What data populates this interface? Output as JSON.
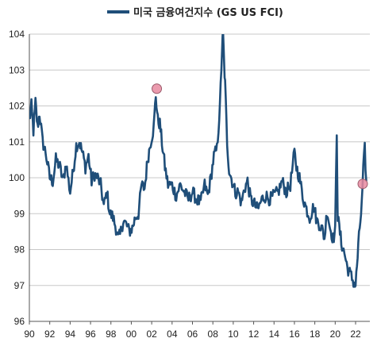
{
  "chart_data": {
    "type": "line",
    "title": "",
    "xlabel": "",
    "ylabel": "",
    "legend": {
      "placement": "top-center",
      "label": "미국 금융여건지수 (GS US FCI)"
    },
    "xlim": [
      1990,
      2023.4
    ],
    "ylim": [
      96,
      104
    ],
    "y_ticks": [
      96,
      97,
      98,
      99,
      100,
      101,
      102,
      103,
      104
    ],
    "x_ticks": [
      1990,
      1992,
      1994,
      1996,
      1998,
      2000,
      2002,
      2004,
      2006,
      2008,
      2010,
      2012,
      2014,
      2016,
      2018,
      2020,
      2022
    ],
    "x_tick_labels": [
      "90",
      "92",
      "94",
      "96",
      "98",
      "00",
      "02",
      "04",
      "06",
      "08",
      "10",
      "12",
      "14",
      "16",
      "18",
      "20",
      "22"
    ],
    "grid": {
      "horizontal": true,
      "vertical": false
    },
    "colors": {
      "line": "#1f4e79",
      "grid": "#c8c8c8",
      "highlight_fill": "#e88aa0",
      "highlight_stroke": "#9a5a6a"
    },
    "series": [
      {
        "name": "미국 금융여건지수 (GS US FCI)",
        "x": [
          1990.0,
          1990.2,
          1990.4,
          1990.6,
          1990.8,
          1991.0,
          1991.3,
          1991.6,
          1992.0,
          1992.3,
          1992.6,
          1993.0,
          1993.3,
          1993.6,
          1994.0,
          1994.3,
          1994.6,
          1994.9,
          1995.2,
          1995.5,
          1995.8,
          1996.1,
          1996.4,
          1996.7,
          1997.0,
          1997.3,
          1997.6,
          1997.9,
          1998.2,
          1998.5,
          1998.7,
          1998.9,
          1999.2,
          1999.5,
          1999.8,
          2000.1,
          2000.4,
          2000.7,
          2001.0,
          2001.3,
          2001.6,
          2001.9,
          2002.2,
          2002.4,
          2002.6,
          2002.8,
          2003.0,
          2003.3,
          2003.6,
          2004.0,
          2004.4,
          2004.8,
          2005.2,
          2005.6,
          2006.0,
          2006.4,
          2006.8,
          2007.2,
          2007.5,
          2007.8,
          2008.1,
          2008.4,
          2008.7,
          2008.9,
          2009.0,
          2009.1,
          2009.2,
          2009.4,
          2009.6,
          2009.9,
          2010.2,
          2010.5,
          2010.8,
          2011.1,
          2011.4,
          2011.7,
          2012.0,
          2012.4,
          2012.8,
          2013.2,
          2013.6,
          2014.0,
          2014.4,
          2014.8,
          2015.2,
          2015.6,
          2016.0,
          2016.2,
          2016.5,
          2016.8,
          2017.1,
          2017.5,
          2017.9,
          2018.2,
          2018.5,
          2018.8,
          2018.95,
          2019.2,
          2019.5,
          2019.8,
          2020.0,
          2020.15,
          2020.25,
          2020.4,
          2020.6,
          2020.9,
          2021.2,
          2021.5,
          2021.8,
          2022.0,
          2022.2,
          2022.4,
          2022.6,
          2022.75,
          2022.9,
          2023.05
        ],
        "values": [
          101.6,
          102.0,
          101.3,
          102.1,
          101.4,
          101.8,
          101.0,
          100.7,
          100.0,
          99.9,
          100.5,
          100.3,
          99.9,
          100.4,
          99.6,
          100.2,
          100.9,
          101.0,
          100.7,
          100.3,
          100.6,
          99.9,
          100.1,
          100.0,
          99.8,
          99.2,
          99.6,
          99.0,
          98.9,
          98.6,
          98.3,
          98.4,
          98.8,
          98.7,
          98.5,
          98.6,
          98.9,
          99.0,
          99.8,
          99.7,
          100.5,
          101.0,
          101.4,
          102.3,
          101.6,
          101.5,
          101.0,
          100.3,
          99.8,
          99.8,
          99.5,
          99.8,
          99.6,
          99.4,
          99.6,
          99.4,
          99.3,
          99.8,
          99.5,
          100.0,
          100.6,
          100.8,
          102.0,
          103.6,
          104.0,
          103.2,
          102.6,
          101.0,
          100.2,
          99.9,
          99.6,
          99.6,
          99.3,
          99.7,
          99.9,
          99.4,
          99.3,
          99.1,
          99.4,
          99.5,
          99.4,
          99.5,
          99.6,
          99.9,
          99.6,
          99.8,
          100.7,
          100.3,
          100.0,
          99.5,
          99.2,
          98.9,
          99.2,
          98.8,
          98.7,
          98.5,
          98.3,
          99.1,
          98.6,
          98.3,
          98.5,
          101.3,
          98.9,
          98.6,
          98.2,
          97.9,
          97.5,
          97.3,
          97.1,
          97.0,
          97.8,
          98.6,
          99.2,
          100.2,
          100.8,
          99.9
        ]
      }
    ],
    "highlights": [
      {
        "x": 2002.5,
        "y": 102.48
      },
      {
        "x": 2022.7,
        "y": 99.83
      }
    ]
  }
}
